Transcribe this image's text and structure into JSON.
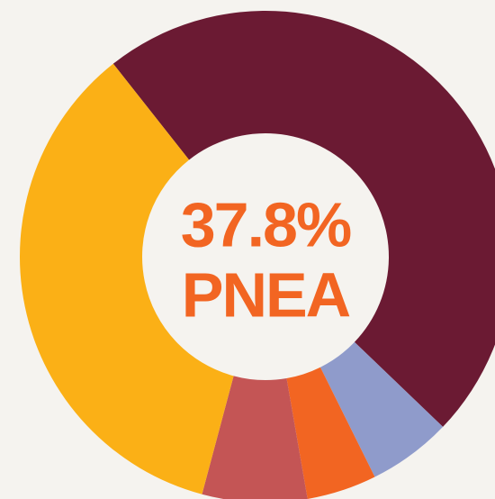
{
  "chart_data": {
    "type": "donut",
    "center_text": [
      "37.8%",
      "PNEA"
    ],
    "values": [
      47.8,
      5.5,
      4.6,
      6.9,
      35.2
    ],
    "colors": [
      "#6b1a33",
      "#8f9bcb",
      "#f26522",
      "#c45555",
      "#fbb016"
    ],
    "text_color": "#f26522"
  }
}
